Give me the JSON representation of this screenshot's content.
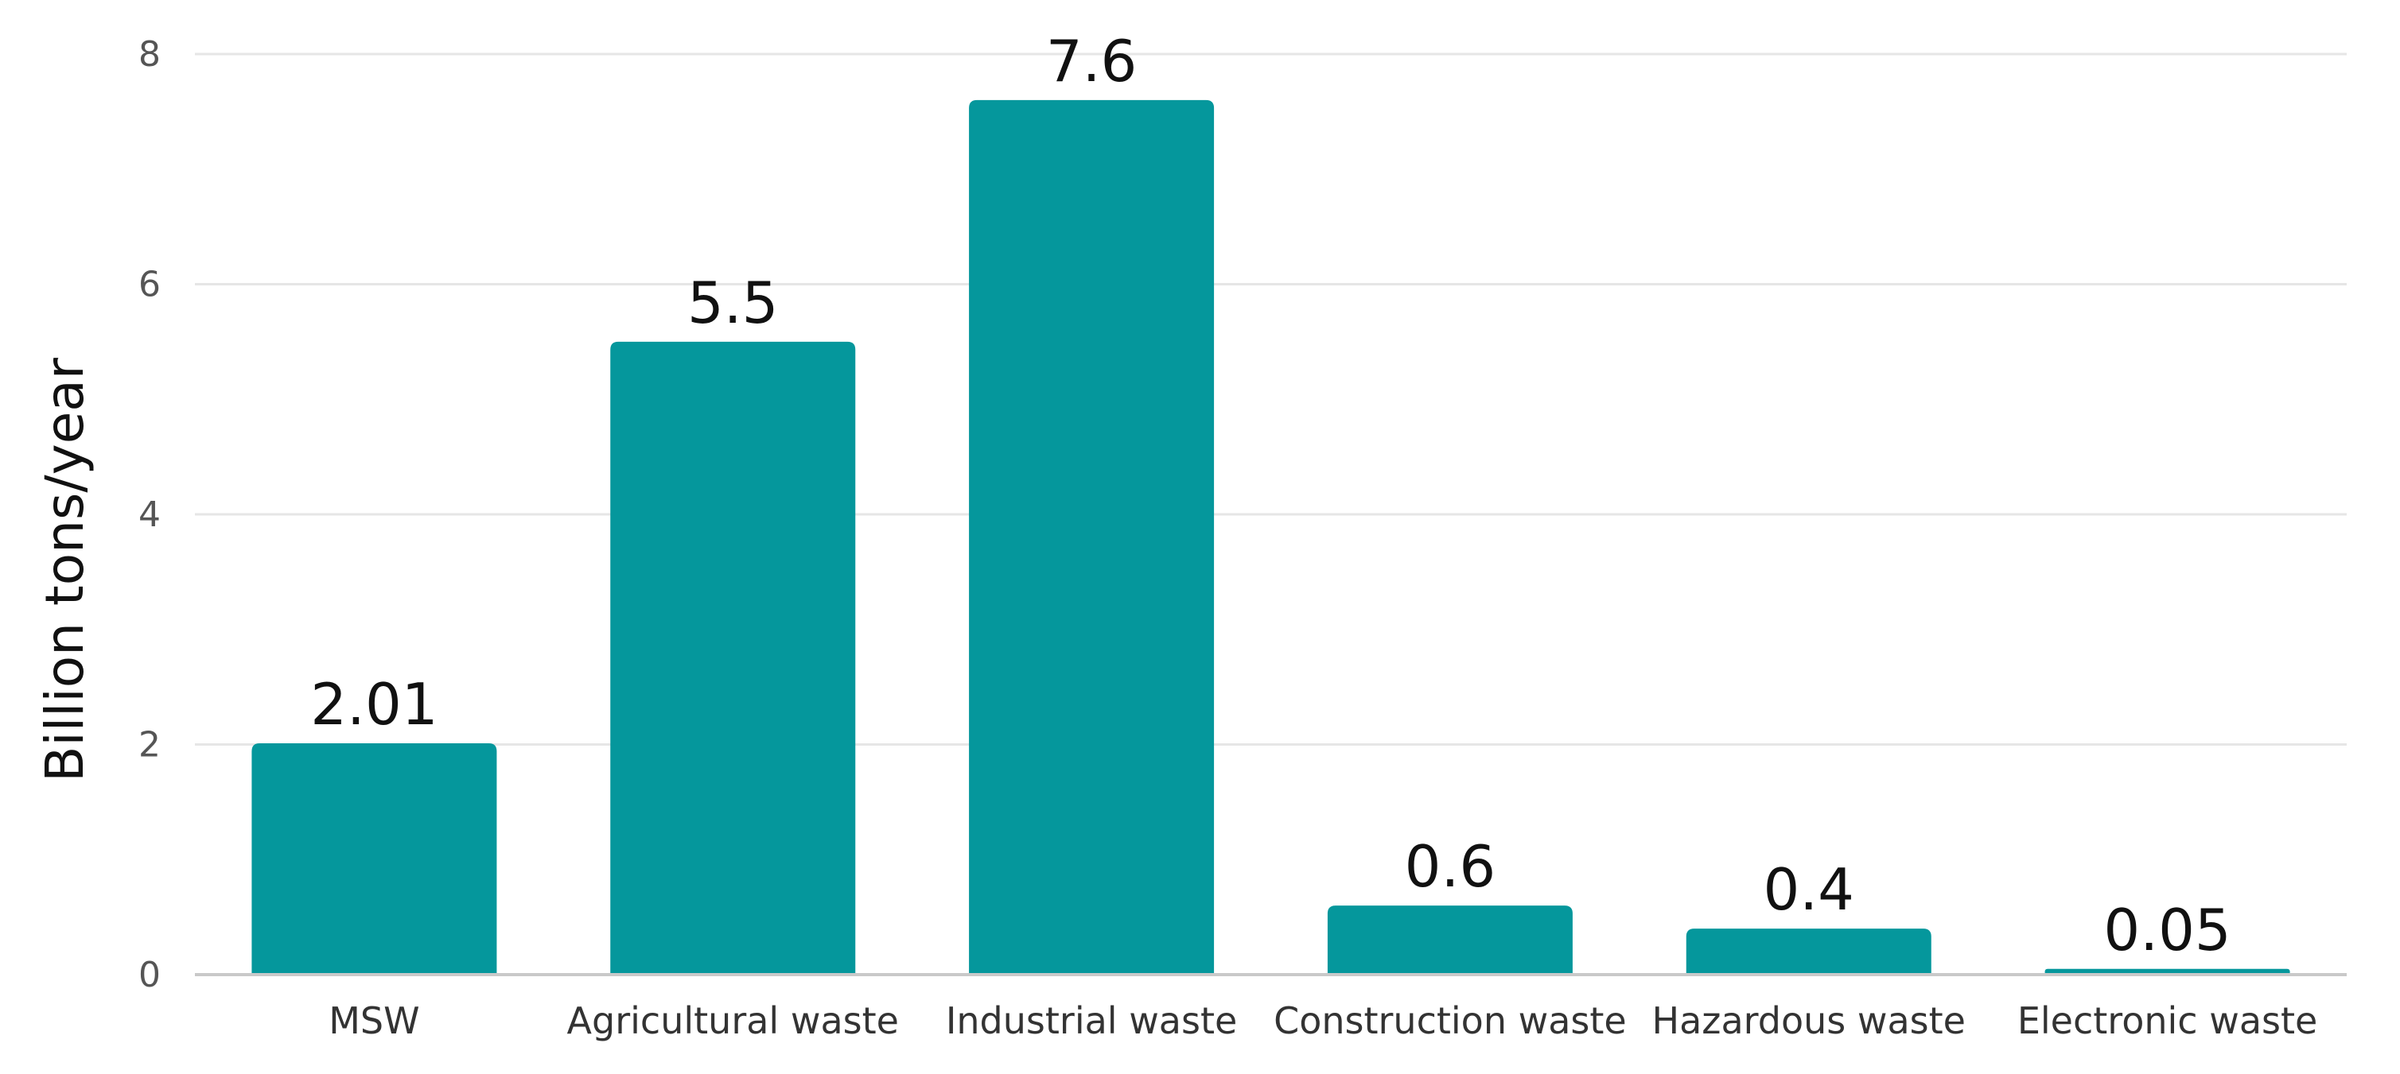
{
  "chart_data": {
    "type": "bar",
    "categories": [
      "MSW",
      "Agricultural waste",
      "Industrial waste",
      "Construction waste",
      "Hazardous waste",
      "Electronic waste"
    ],
    "values": [
      2.01,
      5.5,
      7.6,
      0.6,
      0.4,
      0.05
    ],
    "data_labels": [
      "2.01",
      "5.5",
      "7.6",
      "0.6",
      "0.4",
      "0.05"
    ],
    "ylabel": "Billion tons/year",
    "xlabel": "",
    "ylim": [
      0,
      8
    ],
    "yticks": [
      0,
      2,
      4,
      6,
      8
    ],
    "grid": true,
    "legend": "none",
    "bar_color": "#05979c"
  }
}
